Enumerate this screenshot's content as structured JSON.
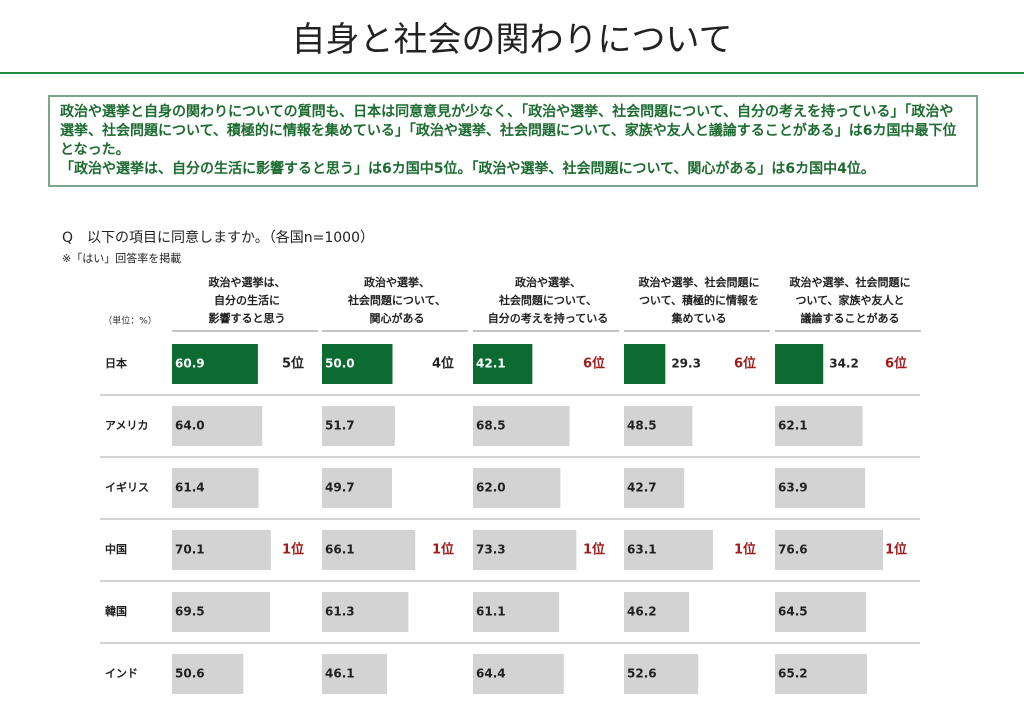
{
  "title": "自身と社会の関わりについて",
  "summary": [
    "政治や選挙と自身の関わりについての質問も、日本は同意意見が少なく、「政治や選挙、社会問題について、自分の考えを持っている」「政治や選挙、社会問題について、積極的に情報を集めている」「政治や選挙、社会問題について、家族や友人と議論することがある」は6カ国中最下位となった。",
    "「政治や選挙は、自分の生活に影響すると思う」は6カ国中5位。「政治や選挙、社会問題について、関心がある」は6カ国中4位。"
  ],
  "question": "Q　以下の項目に同意しますか。（各国n=1000）",
  "note": "※「はい」回答率を掲載",
  "unit": "（単位：%）",
  "chart_data": {
    "type": "bar",
    "xlim": [
      0,
      100
    ],
    "color": "#d3d3d3",
    "highlight_color": "#0c6b31",
    "categories": [
      "日本",
      "アメリカ",
      "イギリス",
      "中国",
      "韓国",
      "インド"
    ],
    "series": [
      {
        "name": "政治や選挙は、\n自分の生活に\n影響すると思う",
        "values": [
          60.9,
          64.0,
          61.4,
          70.1,
          69.5,
          50.6
        ],
        "value_labels": [
          "60.9",
          "64.0",
          "61.4",
          "70.1",
          "69.5",
          "50.6"
        ],
        "rank_labels": [
          {
            "text": "5位",
            "color": "#222222"
          },
          null,
          null,
          {
            "text": "1位",
            "color": "#a01c1c"
          },
          null,
          null
        ]
      },
      {
        "name": "政治や選挙、\n社会問題について、\n関心がある",
        "values": [
          50.0,
          51.7,
          49.7,
          66.1,
          61.3,
          46.1
        ],
        "value_labels": [
          "50.0",
          "51.7",
          "49.7",
          "66.1",
          "61.3",
          "46.1"
        ],
        "rank_labels": [
          {
            "text": "4位",
            "color": "#222222"
          },
          null,
          null,
          {
            "text": "1位",
            "color": "#a01c1c"
          },
          null,
          null
        ]
      },
      {
        "name": "政治や選挙、\n社会問題について、\n自分の考えを持っている",
        "values": [
          42.1,
          68.5,
          62.0,
          73.3,
          61.1,
          64.4
        ],
        "value_labels": [
          "42.1",
          "68.5",
          "62.0",
          "73.3",
          "61.1",
          "64.4"
        ],
        "rank_labels": [
          {
            "text": "6位",
            "color": "#a01c1c"
          },
          null,
          null,
          {
            "text": "1位",
            "color": "#a01c1c"
          },
          null,
          null
        ]
      },
      {
        "name": "政治や選挙、社会問題に\nついて、積極的に情報を\n集めている",
        "values": [
          29.3,
          48.5,
          42.7,
          63.1,
          46.2,
          52.6
        ],
        "value_labels": [
          "29.3",
          "48.5",
          "42.7",
          "63.1",
          "46.2",
          "52.6"
        ],
        "rank_labels": [
          {
            "text": "6位",
            "color": "#a01c1c"
          },
          null,
          null,
          {
            "text": "1位",
            "color": "#a01c1c"
          },
          null,
          null
        ]
      },
      {
        "name": "政治や選挙、社会問題に\nついて、家族や友人と\n議論することがある",
        "values": [
          34.2,
          62.1,
          63.9,
          76.6,
          64.5,
          65.2
        ],
        "value_labels": [
          "34.2",
          "62.1",
          "63.9",
          "76.6",
          "64.5",
          "65.2"
        ],
        "rank_labels": [
          {
            "text": "6位",
            "color": "#a01c1c"
          },
          null,
          null,
          {
            "text": "1位",
            "color": "#a01c1c"
          },
          null,
          null
        ]
      }
    ]
  }
}
